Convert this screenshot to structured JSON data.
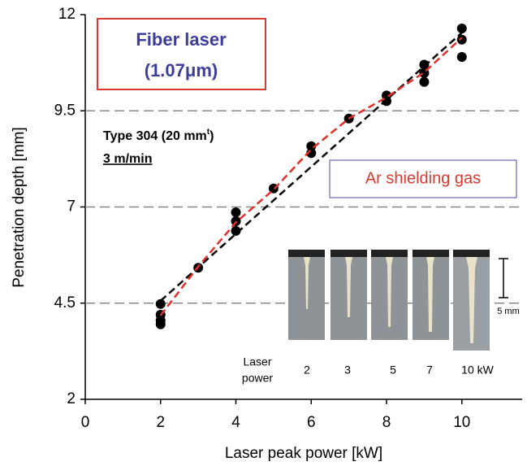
{
  "chart_data": {
    "type": "scatter",
    "x_label": "Laser peak power [kW]",
    "y_label": "Penetration depth [mm]",
    "xlim": [
      0,
      11.6
    ],
    "ylim": [
      2,
      12
    ],
    "xticks": [
      0,
      2,
      4,
      6,
      8,
      10
    ],
    "yticks": [
      2,
      4.5,
      7,
      9.5,
      12
    ],
    "grid_y": [
      4.5,
      7,
      9.5
    ],
    "series": [
      {
        "color": "#000000",
        "x": [
          2,
          2,
          2,
          2,
          3,
          4,
          4,
          4,
          5,
          6,
          6,
          7,
          8,
          8,
          9,
          9,
          9,
          10,
          10,
          10
        ],
        "values": [
          4.48,
          4.2,
          4.05,
          3.95,
          5.42,
          6.86,
          6.63,
          6.38,
          7.48,
          8.58,
          8.4,
          9.3,
          9.9,
          9.75,
          10.7,
          10.48,
          10.25,
          11.64,
          11.35,
          10.9
        ]
      }
    ],
    "fit_lines": [
      {
        "color": "#000000",
        "x": [
          2,
          10
        ],
        "values": [
          4.56,
          11.53
        ]
      },
      {
        "color": "#e0302a",
        "x": [
          2,
          3,
          4,
          5,
          6,
          7,
          8,
          9,
          10
        ],
        "values": [
          4.18,
          5.45,
          6.6,
          7.45,
          8.5,
          9.3,
          9.85,
          10.5,
          11.4
        ]
      }
    ],
    "annotations": {
      "laser": "Fiber laser",
      "wavelength": "(1.07μm)",
      "material": "Type 304 (20 mm",
      "material_sup": "t",
      "material_end": ")",
      "speed": "3 m/min",
      "gas": "Ar shielding gas"
    },
    "inset": {
      "power_label": [
        "Laser",
        "power"
      ],
      "powers": [
        "2",
        "3",
        "5",
        "7",
        "10 kW"
      ],
      "scale_label": "5 mm"
    }
  }
}
